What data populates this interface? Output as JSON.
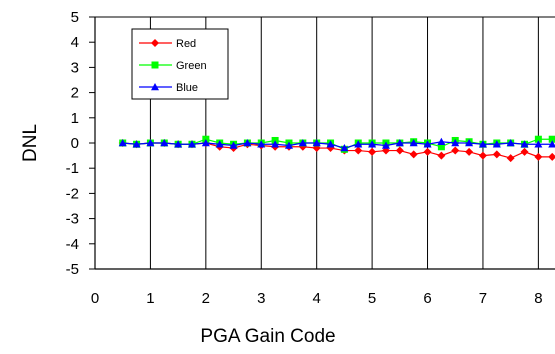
{
  "chart_data": {
    "type": "line",
    "title": "",
    "xlabel": "PGA Gain Code",
    "ylabel": "DNL",
    "xlim": [
      0,
      8.3
    ],
    "ylim": [
      -5,
      5
    ],
    "xticks": [
      "0",
      "1",
      "2",
      "3",
      "4",
      "5",
      "6",
      "7",
      "8"
    ],
    "yticks": [
      "5",
      "4",
      "3",
      "2",
      "1",
      "0",
      "-1",
      "-2",
      "-3",
      "-4",
      "-5"
    ],
    "grid": "vertical",
    "legend_position": "top-left",
    "x": [
      0.5,
      0.75,
      1.0,
      1.25,
      1.5,
      1.75,
      2.0,
      2.25,
      2.5,
      2.75,
      3.0,
      3.25,
      3.5,
      3.75,
      4.0,
      4.25,
      4.5,
      4.75,
      5.0,
      5.25,
      5.5,
      5.75,
      6.0,
      6.25,
      6.5,
      6.75,
      7.0,
      7.25,
      7.5,
      7.75,
      8.0,
      8.25
    ],
    "series": [
      {
        "name": "Red",
        "color": "#ff0000",
        "marker": "diamond",
        "values": [
          0.0,
          -0.05,
          0.0,
          0.0,
          -0.05,
          -0.05,
          0.0,
          -0.15,
          -0.2,
          -0.05,
          -0.1,
          -0.15,
          -0.15,
          -0.15,
          -0.2,
          -0.2,
          -0.3,
          -0.3,
          -0.35,
          -0.3,
          -0.3,
          -0.45,
          -0.35,
          -0.5,
          -0.3,
          -0.35,
          -0.5,
          -0.45,
          -0.6,
          -0.35,
          -0.55,
          -0.55
        ]
      },
      {
        "name": "Green",
        "color": "#00ff00",
        "marker": "square",
        "values": [
          0.0,
          -0.05,
          0.0,
          0.0,
          -0.05,
          -0.05,
          0.15,
          0.0,
          -0.05,
          0.0,
          0.0,
          0.1,
          0.0,
          0.0,
          0.0,
          0.0,
          -0.25,
          0.0,
          0.0,
          0.0,
          0.0,
          0.05,
          0.0,
          -0.15,
          0.1,
          0.05,
          -0.05,
          0.0,
          0.0,
          -0.05,
          0.15,
          0.15
        ]
      },
      {
        "name": "Blue",
        "color": "#0000ff",
        "marker": "triangle",
        "values": [
          0.0,
          -0.05,
          0.0,
          0.0,
          -0.05,
          -0.05,
          0.0,
          -0.05,
          -0.1,
          0.0,
          -0.05,
          -0.05,
          -0.1,
          0.0,
          0.0,
          -0.05,
          -0.2,
          -0.05,
          -0.05,
          -0.1,
          0.0,
          0.0,
          -0.05,
          0.05,
          0.0,
          0.0,
          -0.05,
          -0.05,
          0.0,
          -0.05,
          -0.05,
          -0.05
        ]
      }
    ]
  }
}
